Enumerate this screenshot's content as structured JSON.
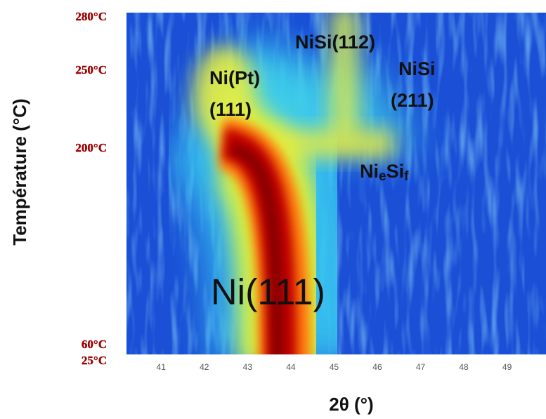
{
  "chart_data": {
    "type": "heatmap",
    "x_label": "2θ (°)",
    "y_label": "Température (°C)",
    "xlim": [
      40.2,
      49.9
    ],
    "xticks": [
      41,
      42,
      43,
      44,
      45,
      46,
      47,
      48,
      49
    ],
    "yticks": [
      {
        "value": 280,
        "label": "280°C"
      },
      {
        "value": 250,
        "label": "250°C"
      },
      {
        "value": 200,
        "label": "200°C"
      },
      {
        "value": 60,
        "label": "60°C"
      },
      {
        "value": 25,
        "label": "25°C"
      }
    ],
    "annotations": [
      "NiSi(112)",
      "Ni(Pt)",
      "(111)",
      "NiSi",
      "(211)",
      "Ni(111)"
    ],
    "phase_label": [
      "Ni",
      "e",
      "Si",
      "f"
    ]
  }
}
